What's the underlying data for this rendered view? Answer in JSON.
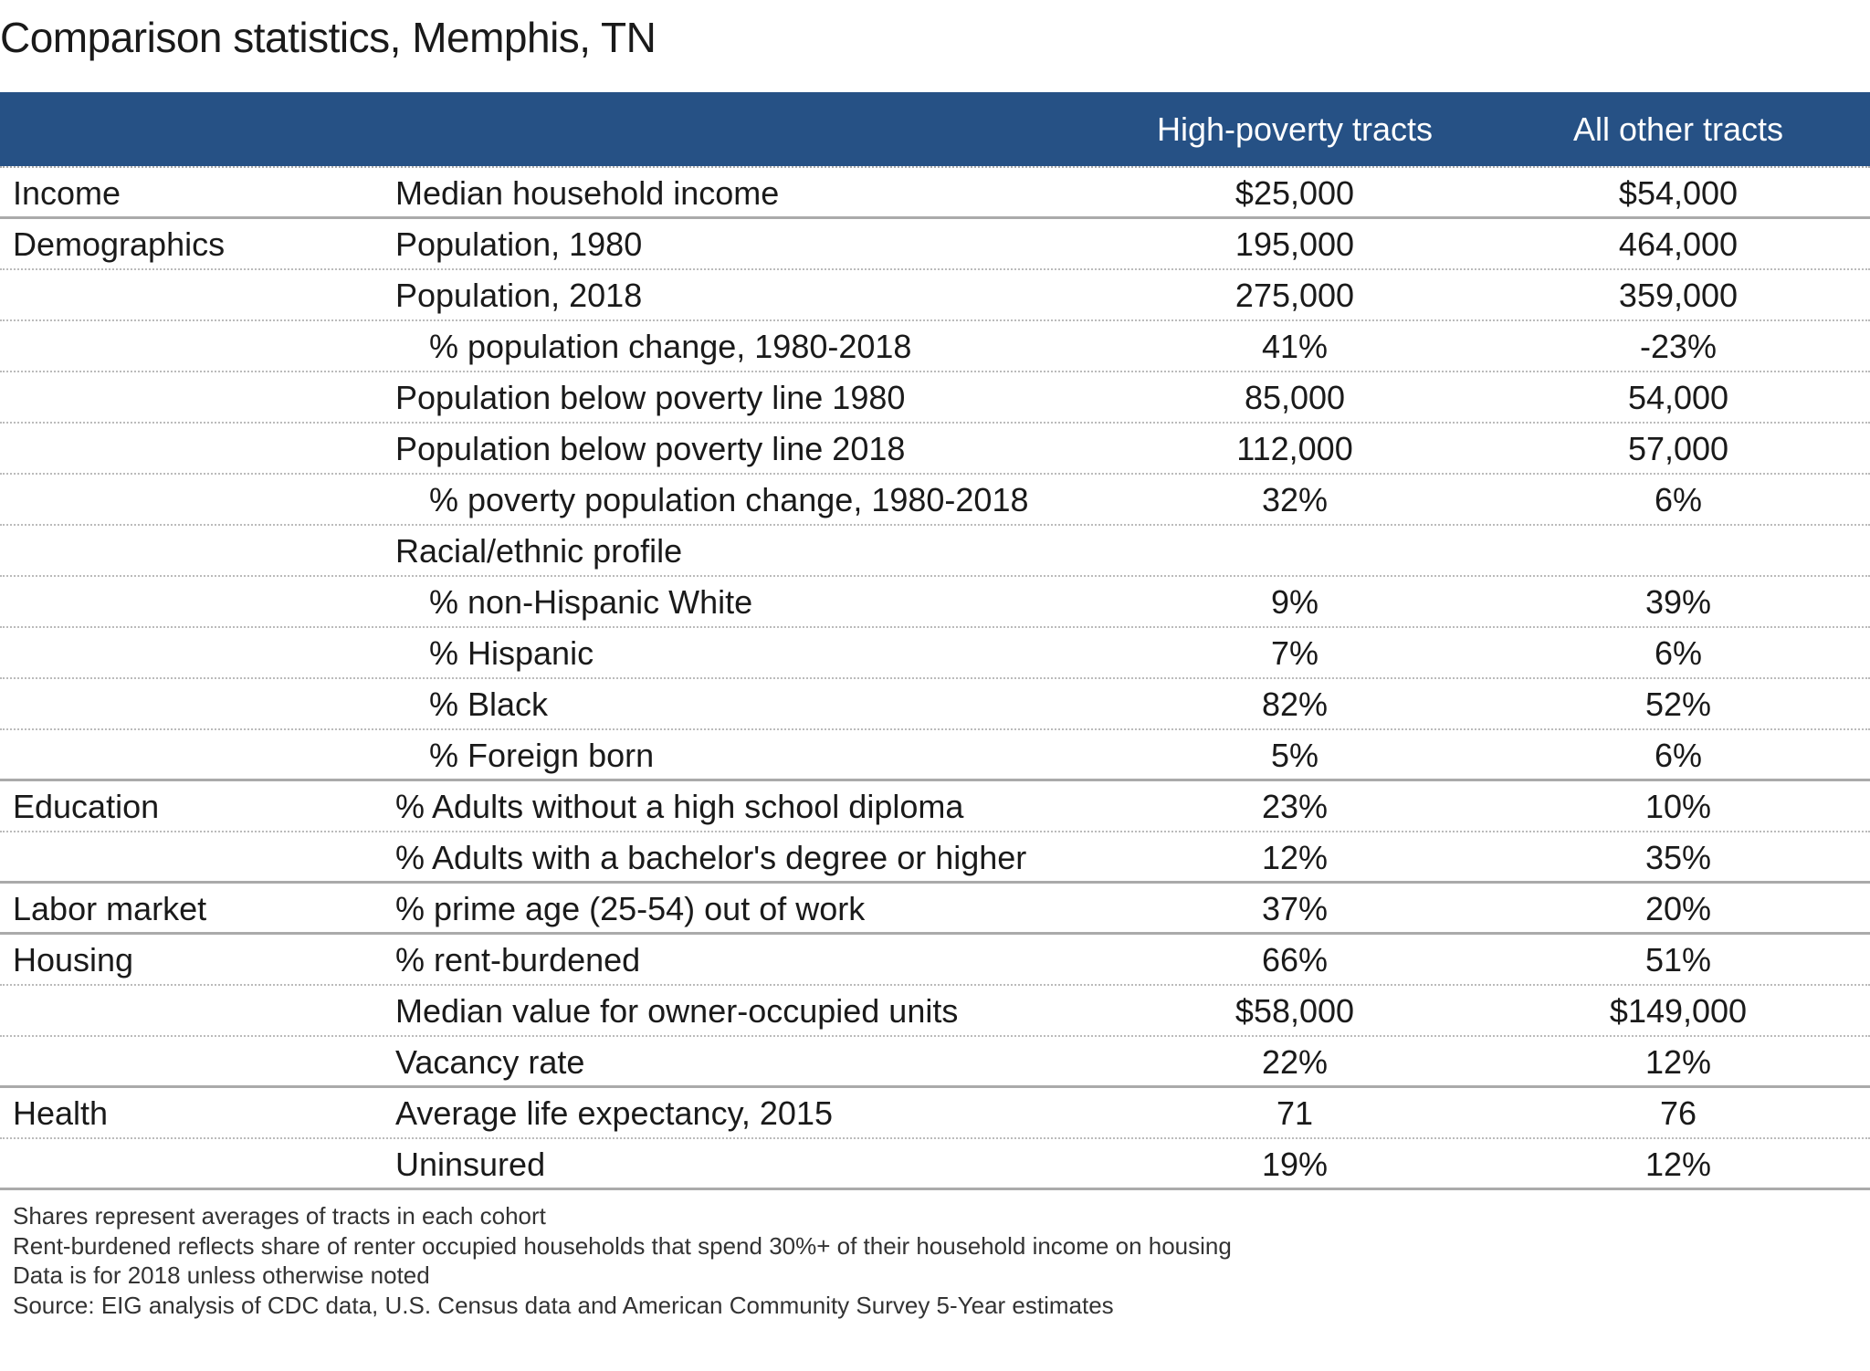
{
  "title": "Comparison statistics, Memphis, TN",
  "header_color": "#265185",
  "columns": [
    "",
    "",
    "High-poverty tracts",
    "All other tracts"
  ],
  "rows": [
    {
      "category": "Income",
      "metric": "Median household income",
      "high": "$25,000",
      "other": "$54,000",
      "indent": false,
      "section_end": true
    },
    {
      "category": "Demographics",
      "metric": "Population, 1980",
      "high": "195,000",
      "other": "464,000",
      "indent": false,
      "section_end": false
    },
    {
      "category": "",
      "metric": "Population, 2018",
      "high": "275,000",
      "other": "359,000",
      "indent": false,
      "section_end": false
    },
    {
      "category": "",
      "metric": "% population change, 1980-2018",
      "high": "41%",
      "other": "-23%",
      "indent": true,
      "section_end": false
    },
    {
      "category": "",
      "metric": "Population below poverty line 1980",
      "high": "85,000",
      "other": "54,000",
      "indent": false,
      "section_end": false
    },
    {
      "category": "",
      "metric": "Population below poverty line 2018",
      "high": "112,000",
      "other": "57,000",
      "indent": false,
      "section_end": false
    },
    {
      "category": "",
      "metric": "% poverty population change, 1980-2018",
      "high": "32%",
      "other": "6%",
      "indent": true,
      "section_end": false
    },
    {
      "category": "",
      "metric": "Racial/ethnic profile",
      "high": "",
      "other": "",
      "indent": false,
      "section_end": false
    },
    {
      "category": "",
      "metric": "% non-Hispanic White",
      "high": "9%",
      "other": "39%",
      "indent": true,
      "section_end": false
    },
    {
      "category": "",
      "metric": "% Hispanic",
      "high": "7%",
      "other": "6%",
      "indent": true,
      "section_end": false
    },
    {
      "category": "",
      "metric": "% Black",
      "high": "82%",
      "other": "52%",
      "indent": true,
      "section_end": false
    },
    {
      "category": "",
      "metric": "% Foreign born",
      "high": "5%",
      "other": "6%",
      "indent": true,
      "section_end": true
    },
    {
      "category": "Education",
      "metric": "% Adults without a high school diploma",
      "high": "23%",
      "other": "10%",
      "indent": false,
      "section_end": false
    },
    {
      "category": "",
      "metric": "% Adults with a bachelor's degree or higher",
      "high": "12%",
      "other": "35%",
      "indent": false,
      "section_end": true
    },
    {
      "category": "Labor market",
      "metric": "% prime age (25-54) out of work",
      "high": "37%",
      "other": "20%",
      "indent": false,
      "section_end": true
    },
    {
      "category": "Housing",
      "metric": "% rent-burdened",
      "high": "66%",
      "other": "51%",
      "indent": false,
      "section_end": false
    },
    {
      "category": "",
      "metric": "Median value for owner-occupied units",
      "high": "$58,000",
      "other": "$149,000",
      "indent": false,
      "section_end": false
    },
    {
      "category": "",
      "metric": "Vacancy rate",
      "high": "22%",
      "other": "12%",
      "indent": false,
      "section_end": true
    },
    {
      "category": "Health",
      "metric": "Average life expectancy, 2015",
      "high": "71",
      "other": "76",
      "indent": false,
      "section_end": false
    },
    {
      "category": "",
      "metric": "Uninsured",
      "high": "19%",
      "other": "12%",
      "indent": false,
      "section_end": true
    }
  ],
  "notes": [
    "Shares represent averages of tracts in each cohort",
    "Rent-burdened reflects share of renter occupied households that spend 30%+ of their household income on housing",
    "Data is for 2018 unless otherwise noted",
    "Source: EIG analysis of CDC data, U.S. Census data and American Community Survey 5-Year estimates"
  ]
}
